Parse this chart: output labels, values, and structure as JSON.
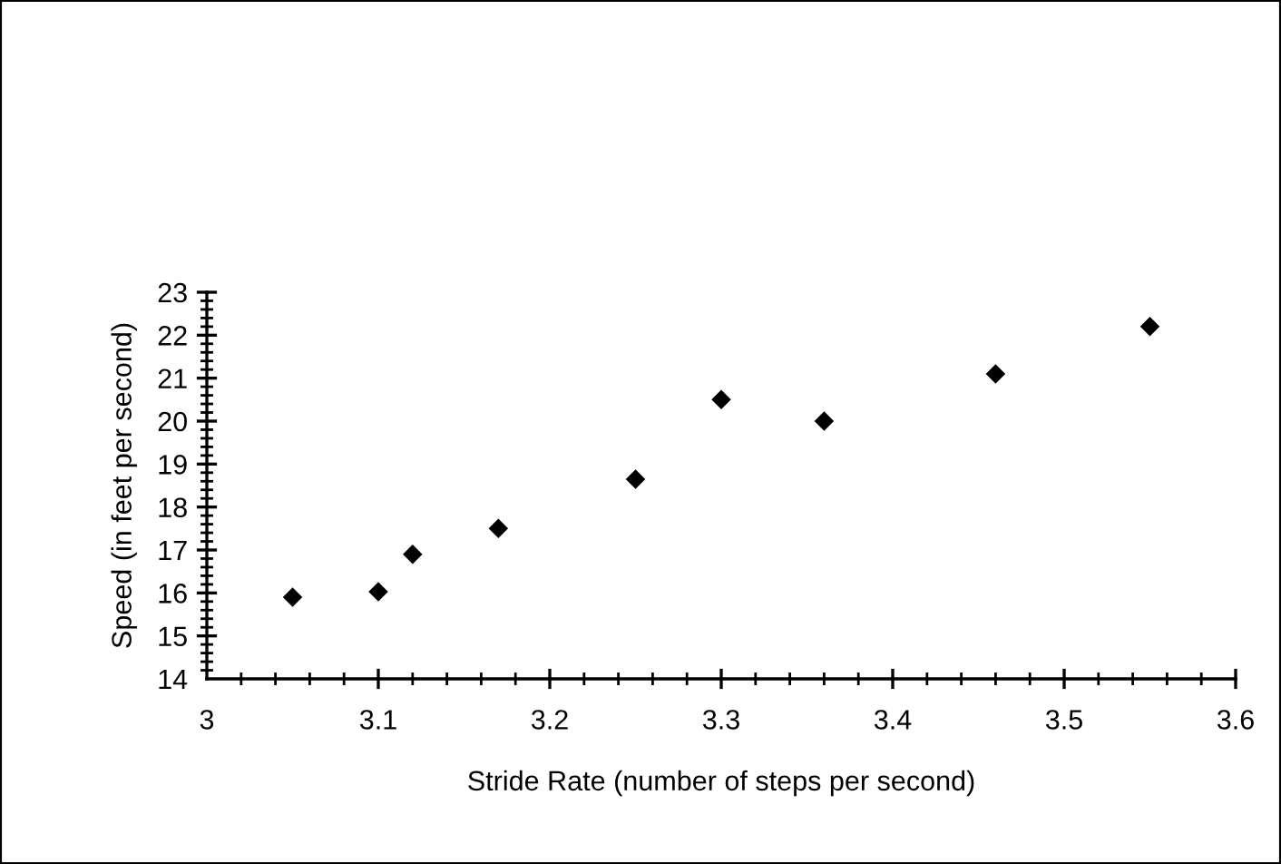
{
  "chart_data": {
    "type": "scatter",
    "xlabel": "Stride Rate (number of steps per second)",
    "ylabel": "Speed (in feet per second)",
    "x": [
      3.05,
      3.1,
      3.12,
      3.17,
      3.25,
      3.3,
      3.36,
      3.46,
      3.55
    ],
    "values": [
      15.9,
      16.03,
      16.9,
      17.5,
      18.65,
      20.5,
      20.0,
      21.1,
      22.2
    ],
    "color": "#000000",
    "marker": "diamond",
    "xlim": [
      3,
      3.6
    ],
    "xticks": [
      3,
      3.1,
      3.2,
      3.3,
      3.4,
      3.5,
      3.6
    ],
    "ylim": [
      14,
      23
    ],
    "yticks": [
      14,
      15,
      16,
      17,
      18,
      19,
      20,
      21,
      22,
      23
    ],
    "grid": false,
    "legend": false
  }
}
